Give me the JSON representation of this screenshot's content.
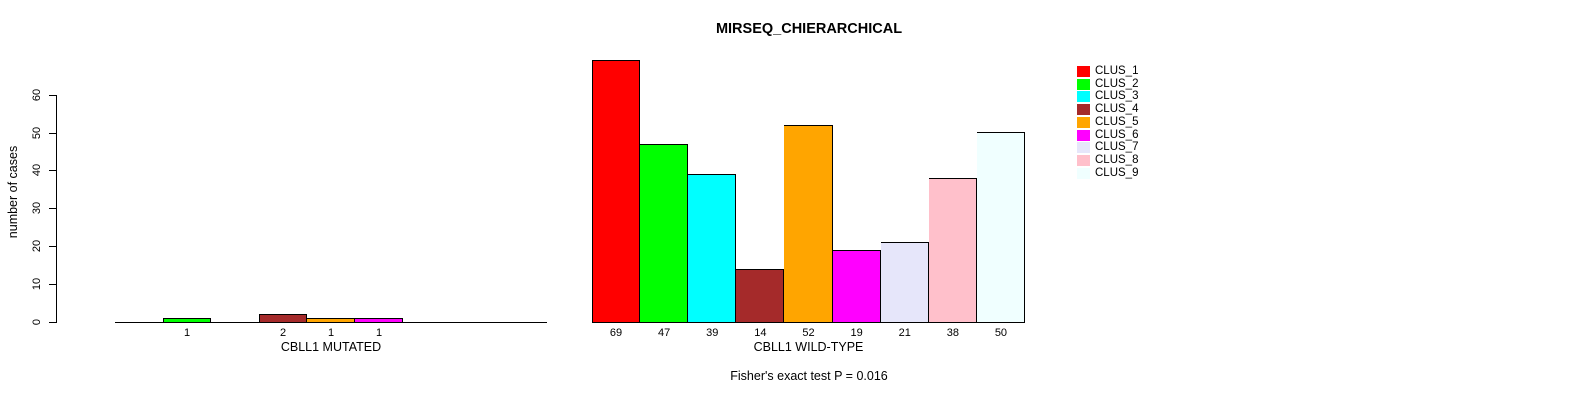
{
  "chart_data": {
    "type": "bar",
    "title": "MIRSEQ_CHIERARCHICAL",
    "ylabel": "number of cases",
    "ylim": [
      0,
      60
    ],
    "yticks": [
      0,
      10,
      20,
      30,
      40,
      50,
      60
    ],
    "grid": false,
    "legend_position": "right",
    "categories": [
      "CLUS_1",
      "CLUS_2",
      "CLUS_3",
      "CLUS_4",
      "CLUS_5",
      "CLUS_6",
      "CLUS_7",
      "CLUS_8",
      "CLUS_9"
    ],
    "colors": [
      "#FF0000",
      "#00FF00",
      "#00FFFF",
      "#A52A2A",
      "#FFA500",
      "#FF00FF",
      "#E6E6FA",
      "#FFC0CB",
      "#F0FFFF"
    ],
    "panels": [
      {
        "xlabel": "CBLL1 MUTATED",
        "values": [
          0,
          1,
          0,
          2,
          1,
          1,
          0,
          0,
          0
        ]
      },
      {
        "xlabel": "CBLL1 WILD-TYPE",
        "values": [
          69,
          47,
          39,
          14,
          52,
          19,
          21,
          38,
          50
        ]
      }
    ],
    "annotation": "Fisher's exact test P = 0.016"
  }
}
